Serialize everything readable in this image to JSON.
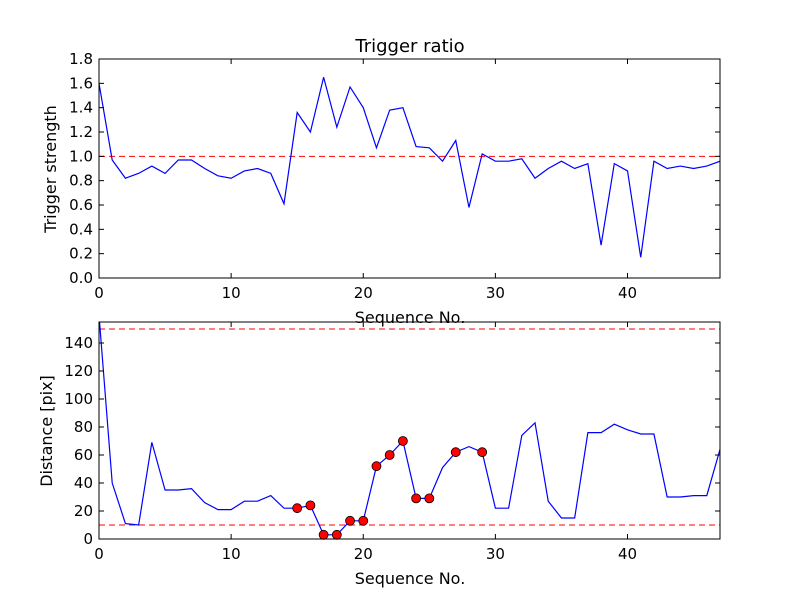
{
  "chart_data": [
    {
      "type": "line",
      "title": "Trigger ratio",
      "xlabel": "Sequence No.",
      "ylabel": "Trigger strength",
      "xlim": [
        0,
        47
      ],
      "ylim": [
        0,
        1.8
      ],
      "xticks": [
        0,
        10,
        20,
        30,
        40
      ],
      "yticks": [
        0.0,
        0.2,
        0.4,
        0.6,
        0.8,
        1.0,
        1.2,
        1.4,
        1.6,
        1.8
      ],
      "ytick_labels": [
        "0.0",
        "0.2",
        "0.4",
        "0.6",
        "0.8",
        "1.0",
        "1.2",
        "1.4",
        "1.6",
        "1.8"
      ],
      "threshold_lines": [
        1.0
      ],
      "series": [
        {
          "name": "trigger strength",
          "color": "#0000ff",
          "x": [
            0,
            1,
            2,
            3,
            4,
            5,
            6,
            7,
            8,
            9,
            10,
            11,
            12,
            13,
            14,
            15,
            16,
            17,
            18,
            19,
            20,
            21,
            22,
            23,
            24,
            25,
            26,
            27,
            28,
            29,
            30,
            31,
            32,
            33,
            34,
            35,
            36,
            37,
            38,
            39,
            40,
            41,
            42,
            43,
            44,
            45,
            46,
            47
          ],
          "y": [
            1.6,
            0.97,
            0.82,
            0.86,
            0.92,
            0.86,
            0.97,
            0.97,
            0.9,
            0.84,
            0.82,
            0.88,
            0.9,
            0.86,
            0.61,
            1.36,
            1.2,
            1.65,
            1.24,
            1.57,
            1.4,
            1.07,
            1.38,
            1.4,
            1.08,
            1.07,
            0.96,
            1.13,
            0.58,
            1.02,
            0.96,
            0.96,
            0.98,
            0.82,
            0.9,
            0.96,
            0.9,
            0.94,
            0.27,
            0.94,
            0.88,
            0.17,
            0.96,
            0.9,
            0.92,
            0.9,
            0.92,
            0.96
          ]
        }
      ]
    },
    {
      "type": "line",
      "title": "",
      "xlabel": "Sequence No.",
      "ylabel": "Distance [pix]",
      "xlim": [
        0,
        47
      ],
      "ylim": [
        0,
        155
      ],
      "xticks": [
        0,
        10,
        20,
        30,
        40
      ],
      "yticks": [
        0,
        20,
        40,
        60,
        80,
        100,
        120,
        140
      ],
      "ytick_labels": [
        "0",
        "20",
        "40",
        "60",
        "80",
        "100",
        "120",
        "140"
      ],
      "threshold_lines": [
        150,
        10
      ],
      "series": [
        {
          "name": "distance",
          "color": "#0000ff",
          "x": [
            0,
            1,
            2,
            3,
            4,
            5,
            6,
            7,
            8,
            9,
            10,
            11,
            12,
            13,
            14,
            15,
            16,
            17,
            18,
            19,
            20,
            21,
            22,
            23,
            24,
            25,
            26,
            27,
            28,
            29,
            30,
            31,
            32,
            33,
            34,
            35,
            36,
            37,
            38,
            39,
            40,
            41,
            42,
            43,
            44,
            45,
            46,
            47
          ],
          "y": [
            160,
            40,
            11,
            10,
            69,
            35,
            35,
            36,
            26,
            21,
            21,
            27,
            27,
            31,
            22,
            22,
            24,
            3,
            3,
            13,
            13,
            52,
            60,
            70,
            29,
            29,
            51,
            62,
            66,
            62,
            22,
            22,
            74,
            83,
            27,
            15,
            15,
            76,
            76,
            82,
            78,
            75,
            75,
            30,
            30,
            31,
            31,
            64
          ]
        },
        {
          "name": "flagged",
          "color": "#ff0000",
          "x": [
            15,
            16,
            17,
            18,
            19,
            20,
            21,
            22,
            23,
            24,
            25,
            27,
            29
          ],
          "y": [
            22,
            24,
            3,
            3,
            13,
            13,
            52,
            60,
            70,
            29,
            29,
            62,
            62
          ]
        }
      ]
    }
  ]
}
